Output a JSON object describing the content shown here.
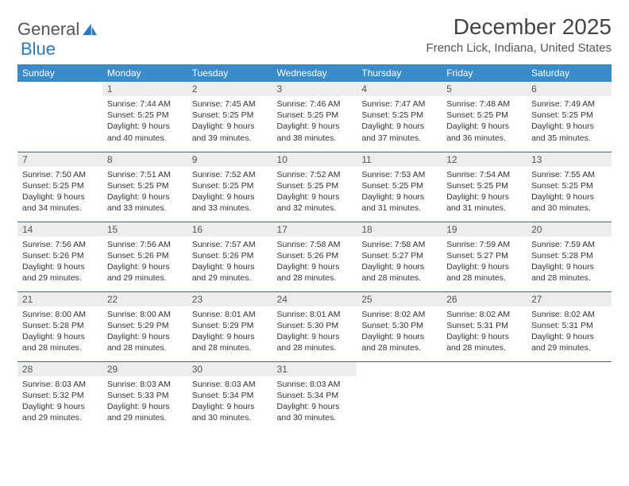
{
  "brand": {
    "part1": "General",
    "part2": "Blue"
  },
  "title": "December 2025",
  "location": "French Lick, Indiana, United States",
  "colors": {
    "header_bg": "#3b8bc8",
    "header_text": "#ffffff",
    "daynum_bg": "#ededed",
    "border": "#2a6aa0",
    "text": "#333333"
  },
  "weekdays": [
    "Sunday",
    "Monday",
    "Tuesday",
    "Wednesday",
    "Thursday",
    "Friday",
    "Saturday"
  ],
  "weeks": [
    [
      null,
      {
        "n": "1",
        "sr": "7:44 AM",
        "ss": "5:25 PM",
        "dl": "9 hours and 40 minutes."
      },
      {
        "n": "2",
        "sr": "7:45 AM",
        "ss": "5:25 PM",
        "dl": "9 hours and 39 minutes."
      },
      {
        "n": "3",
        "sr": "7:46 AM",
        "ss": "5:25 PM",
        "dl": "9 hours and 38 minutes."
      },
      {
        "n": "4",
        "sr": "7:47 AM",
        "ss": "5:25 PM",
        "dl": "9 hours and 37 minutes."
      },
      {
        "n": "5",
        "sr": "7:48 AM",
        "ss": "5:25 PM",
        "dl": "9 hours and 36 minutes."
      },
      {
        "n": "6",
        "sr": "7:49 AM",
        "ss": "5:25 PM",
        "dl": "9 hours and 35 minutes."
      }
    ],
    [
      {
        "n": "7",
        "sr": "7:50 AM",
        "ss": "5:25 PM",
        "dl": "9 hours and 34 minutes."
      },
      {
        "n": "8",
        "sr": "7:51 AM",
        "ss": "5:25 PM",
        "dl": "9 hours and 33 minutes."
      },
      {
        "n": "9",
        "sr": "7:52 AM",
        "ss": "5:25 PM",
        "dl": "9 hours and 33 minutes."
      },
      {
        "n": "10",
        "sr": "7:52 AM",
        "ss": "5:25 PM",
        "dl": "9 hours and 32 minutes."
      },
      {
        "n": "11",
        "sr": "7:53 AM",
        "ss": "5:25 PM",
        "dl": "9 hours and 31 minutes."
      },
      {
        "n": "12",
        "sr": "7:54 AM",
        "ss": "5:25 PM",
        "dl": "9 hours and 31 minutes."
      },
      {
        "n": "13",
        "sr": "7:55 AM",
        "ss": "5:25 PM",
        "dl": "9 hours and 30 minutes."
      }
    ],
    [
      {
        "n": "14",
        "sr": "7:56 AM",
        "ss": "5:26 PM",
        "dl": "9 hours and 29 minutes."
      },
      {
        "n": "15",
        "sr": "7:56 AM",
        "ss": "5:26 PM",
        "dl": "9 hours and 29 minutes."
      },
      {
        "n": "16",
        "sr": "7:57 AM",
        "ss": "5:26 PM",
        "dl": "9 hours and 29 minutes."
      },
      {
        "n": "17",
        "sr": "7:58 AM",
        "ss": "5:26 PM",
        "dl": "9 hours and 28 minutes."
      },
      {
        "n": "18",
        "sr": "7:58 AM",
        "ss": "5:27 PM",
        "dl": "9 hours and 28 minutes."
      },
      {
        "n": "19",
        "sr": "7:59 AM",
        "ss": "5:27 PM",
        "dl": "9 hours and 28 minutes."
      },
      {
        "n": "20",
        "sr": "7:59 AM",
        "ss": "5:28 PM",
        "dl": "9 hours and 28 minutes."
      }
    ],
    [
      {
        "n": "21",
        "sr": "8:00 AM",
        "ss": "5:28 PM",
        "dl": "9 hours and 28 minutes."
      },
      {
        "n": "22",
        "sr": "8:00 AM",
        "ss": "5:29 PM",
        "dl": "9 hours and 28 minutes."
      },
      {
        "n": "23",
        "sr": "8:01 AM",
        "ss": "5:29 PM",
        "dl": "9 hours and 28 minutes."
      },
      {
        "n": "24",
        "sr": "8:01 AM",
        "ss": "5:30 PM",
        "dl": "9 hours and 28 minutes."
      },
      {
        "n": "25",
        "sr": "8:02 AM",
        "ss": "5:30 PM",
        "dl": "9 hours and 28 minutes."
      },
      {
        "n": "26",
        "sr": "8:02 AM",
        "ss": "5:31 PM",
        "dl": "9 hours and 28 minutes."
      },
      {
        "n": "27",
        "sr": "8:02 AM",
        "ss": "5:31 PM",
        "dl": "9 hours and 29 minutes."
      }
    ],
    [
      {
        "n": "28",
        "sr": "8:03 AM",
        "ss": "5:32 PM",
        "dl": "9 hours and 29 minutes."
      },
      {
        "n": "29",
        "sr": "8:03 AM",
        "ss": "5:33 PM",
        "dl": "9 hours and 29 minutes."
      },
      {
        "n": "30",
        "sr": "8:03 AM",
        "ss": "5:34 PM",
        "dl": "9 hours and 30 minutes."
      },
      {
        "n": "31",
        "sr": "8:03 AM",
        "ss": "5:34 PM",
        "dl": "9 hours and 30 minutes."
      },
      null,
      null,
      null
    ]
  ]
}
